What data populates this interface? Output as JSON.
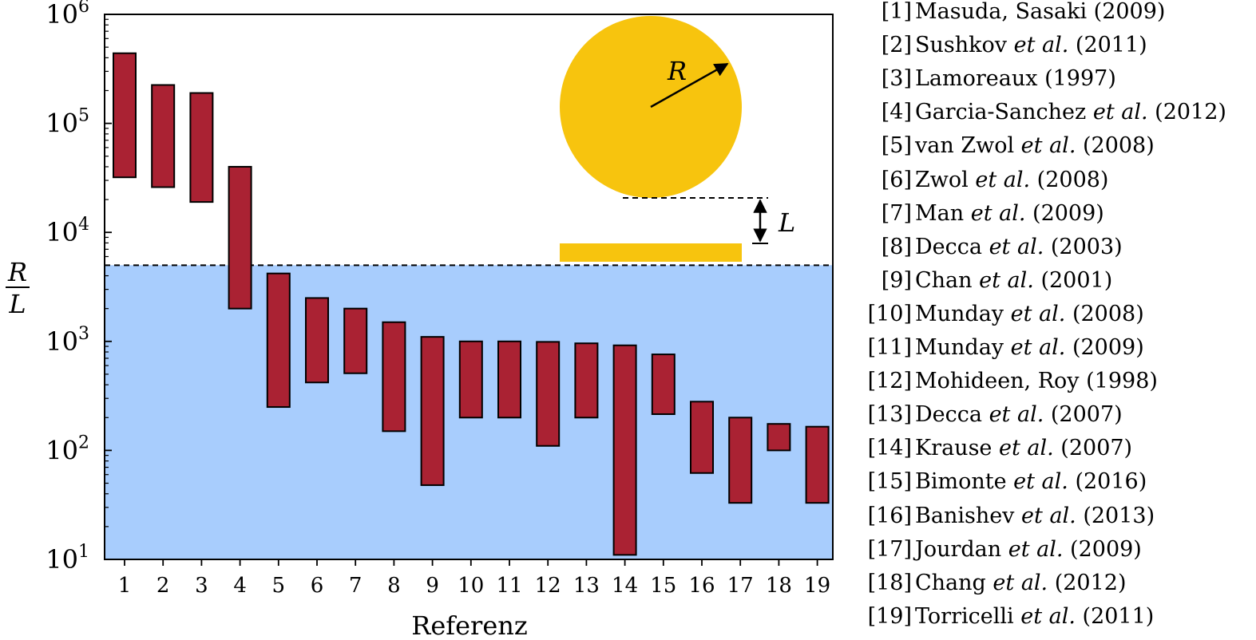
{
  "chart_data": {
    "type": "bar",
    "subtype": "floating-range",
    "yscale": "log",
    "ylim": [
      10,
      1000000
    ],
    "ylabel_numerator": "R",
    "ylabel_denominator": "L",
    "xlabel": "Referenz",
    "categories": [
      "1",
      "2",
      "3",
      "4",
      "5",
      "6",
      "7",
      "8",
      "9",
      "10",
      "11",
      "12",
      "13",
      "14",
      "15",
      "16",
      "17",
      "18",
      "19"
    ],
    "ranges": [
      [
        32000,
        440000
      ],
      [
        26000,
        225000
      ],
      [
        19000,
        190000
      ],
      [
        2000,
        40000
      ],
      [
        250,
        4200
      ],
      [
        420,
        2500
      ],
      [
        510,
        2000
      ],
      [
        150,
        1500
      ],
      [
        48,
        1100
      ],
      [
        200,
        1000
      ],
      [
        200,
        1000
      ],
      [
        110,
        990
      ],
      [
        200,
        960
      ],
      [
        11,
        920
      ],
      [
        215,
        760
      ],
      [
        62,
        280
      ],
      [
        33,
        200
      ],
      [
        100,
        175
      ],
      [
        33,
        165
      ]
    ],
    "yticks": [
      {
        "base": "10",
        "exp": "1"
      },
      {
        "base": "10",
        "exp": "2"
      },
      {
        "base": "10",
        "exp": "3"
      },
      {
        "base": "10",
        "exp": "4"
      },
      {
        "base": "10",
        "exp": "5"
      },
      {
        "base": "10",
        "exp": "6"
      }
    ],
    "threshold": 5000,
    "shaded_below_threshold": true,
    "colors": {
      "bar_fill": "#aa2233",
      "bar_edge": "#000000",
      "shade": "#a8cdfd",
      "inset": "#f7c40e"
    },
    "inset": {
      "radius_label": "R",
      "gap_label": "L"
    }
  },
  "references": [
    {
      "num": "[1]",
      "text": "Masuda, Sasaki (2009)",
      "etal": false
    },
    {
      "num": "[2]",
      "author": "Sushkov",
      "year": "(2011)",
      "etal": true
    },
    {
      "num": "[3]",
      "text": "Lamoreaux (1997)",
      "etal": false
    },
    {
      "num": "[4]",
      "author": "Garcia-Sanchez",
      "year": "(2012)",
      "etal": true
    },
    {
      "num": "[5]",
      "author": "van Zwol",
      "year": "(2008)",
      "etal": true
    },
    {
      "num": "[6]",
      "author": "Zwol",
      "year": "(2008)",
      "etal": true
    },
    {
      "num": "[7]",
      "author": "Man",
      "year": "(2009)",
      "etal": true
    },
    {
      "num": "[8]",
      "author": "Decca",
      "year": "(2003)",
      "etal": true
    },
    {
      "num": "[9]",
      "author": "Chan",
      "year": "(2001)",
      "etal": true
    },
    {
      "num": "[10]",
      "author": "Munday",
      "year": "(2008)",
      "etal": true
    },
    {
      "num": "[11]",
      "author": "Munday",
      "year": "(2009)",
      "etal": true
    },
    {
      "num": "[12]",
      "text": "Mohideen, Roy (1998)",
      "etal": false
    },
    {
      "num": "[13]",
      "author": "Decca",
      "year": "(2007)",
      "etal": true
    },
    {
      "num": "[14]",
      "author": "Krause",
      "year": "(2007)",
      "etal": true
    },
    {
      "num": "[15]",
      "author": "Bimonte",
      "year": "(2016)",
      "etal": true
    },
    {
      "num": "[16]",
      "author": "Banishev",
      "year": "(2013)",
      "etal": true
    },
    {
      "num": "[17]",
      "author": "Jourdan",
      "year": "(2009)",
      "etal": true
    },
    {
      "num": "[18]",
      "author": "Chang",
      "year": "(2012)",
      "etal": true
    },
    {
      "num": "[19]",
      "author": "Torricelli",
      "year": "(2011)",
      "etal": true
    }
  ],
  "etal_text": "et al."
}
